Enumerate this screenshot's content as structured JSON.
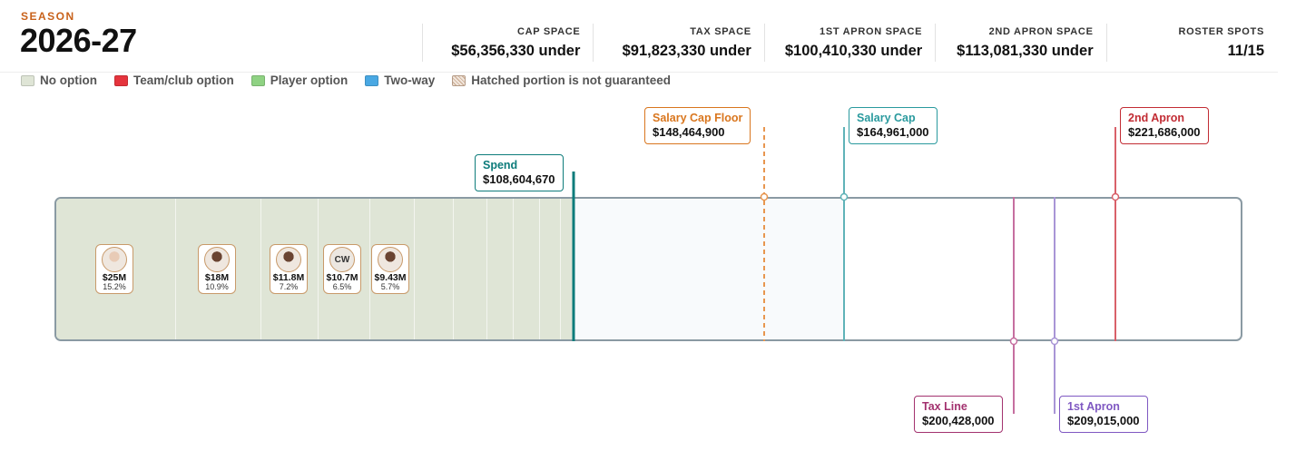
{
  "season": {
    "label": "SEASON",
    "value": "2026-27"
  },
  "stats": [
    {
      "label": "CAP SPACE",
      "value": "$56,356,330 under"
    },
    {
      "label": "TAX SPACE",
      "value": "$91,823,330 under"
    },
    {
      "label": "1ST APRON SPACE",
      "value": "$100,410,330 under"
    },
    {
      "label": "2ND APRON SPACE",
      "value": "$113,081,330 under"
    },
    {
      "label": "ROSTER SPOTS",
      "value": "11/15"
    }
  ],
  "legend": [
    {
      "label": "No option",
      "color": "#dfe5d6"
    },
    {
      "label": "Team/club option",
      "color": "#e5343d"
    },
    {
      "label": "Player option",
      "color": "#8fd283"
    },
    {
      "label": "Two-way",
      "color": "#49a8e3"
    },
    {
      "label": "Hatched portion is not guaranteed",
      "color": "hatched"
    }
  ],
  "players": [
    {
      "salary": "$25M",
      "pct": "15.2%",
      "avatar": "player-photo-light"
    },
    {
      "salary": "$18M",
      "pct": "10.9%",
      "avatar": "player-photo"
    },
    {
      "salary": "$11.8M",
      "pct": "7.2%",
      "avatar": "player-photo"
    },
    {
      "salary": "$10.7M",
      "pct": "6.5%",
      "initials": "CW"
    },
    {
      "salary": "$9.43M",
      "pct": "5.7%",
      "avatar": "player-photo"
    }
  ],
  "markers": {
    "spend": {
      "label": "Spend",
      "value": "$108,604,670",
      "amount": 108604670,
      "color": "#0e7c7b"
    },
    "cap_floor": {
      "label": "Salary Cap Floor",
      "value": "$148,464,900",
      "amount": 148464900,
      "color": "#d9761e"
    },
    "salary_cap": {
      "label": "Salary Cap",
      "value": "$164,961,000",
      "amount": 164961000,
      "color": "#2a9a9e"
    },
    "tax_line": {
      "label": "Tax Line",
      "value": "$200,428,000",
      "amount": 200428000,
      "color": "#a3326f"
    },
    "first_apron": {
      "label": "1st Apron",
      "value": "$209,015,000",
      "amount": 209015000,
      "color": "#7f58c2"
    },
    "second_apron": {
      "label": "2nd Apron",
      "value": "$221,686,000",
      "amount": 221686000,
      "color": "#c22c34"
    }
  }
}
